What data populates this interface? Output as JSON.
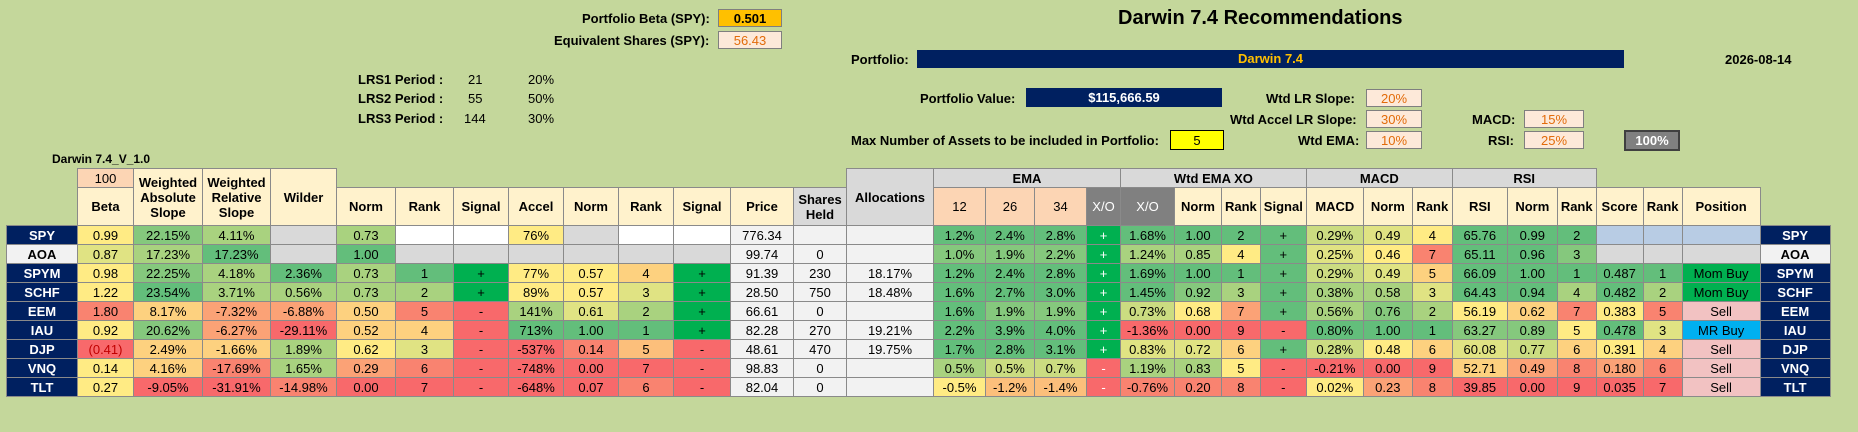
{
  "header": {
    "portfolio_beta_label": "Portfolio Beta (SPY):",
    "portfolio_beta_value": "0.501",
    "equiv_shares_label": "Equivalent Shares (SPY):",
    "equiv_shares_value": "56.43",
    "title": "Darwin 7.4 Recommendations",
    "portfolio_label": "Portfolio:",
    "portfolio_name": "Darwin 7.4",
    "date": "2026-08-14",
    "lrs": [
      {
        "label": "LRS1 Period :",
        "period": "21",
        "pct": "20%"
      },
      {
        "label": "LRS2 Period :",
        "period": "55",
        "pct": "50%"
      },
      {
        "label": "LRS3 Period :",
        "period": "144",
        "pct": "30%"
      }
    ],
    "portfolio_value_label": "Portfolio Value:",
    "portfolio_value": "$115,666.59",
    "max_assets_label": "Max Number of Assets to be included in Portfolio:",
    "max_assets_value": "5",
    "version": "Darwin 7.4_V_1.0",
    "wtd_lr_slope_label": "Wtd LR Slope:",
    "wtd_lr_slope": "20%",
    "wtd_accel_label": "Wtd Accel LR Slope:",
    "wtd_accel": "30%",
    "wtd_ema_label": "Wtd EMA:",
    "wtd_ema": "10%",
    "macd_label": "MACD:",
    "macd": "15%",
    "rsi_label": "RSI:",
    "rsi": "25%",
    "total": "100%"
  },
  "table": {
    "beta_top": "100",
    "h": {
      "beta": "Beta",
      "was": "Weighted Absolute Slope",
      "wrs": "Weighted Relative Slope",
      "wilder": "Wilder",
      "norm": "Norm",
      "rank": "Rank",
      "signal": "Signal",
      "accel": "Accel",
      "price": "Price",
      "shares": "Shares Held",
      "alloc": "Allocations",
      "ema": "EMA",
      "e12": "12",
      "e26": "26",
      "e34": "34",
      "xo": "X/O",
      "wtdxo": "Wtd EMA XO",
      "macd": "MACD",
      "rsi": "RSI",
      "score": "Score",
      "position": "Position"
    },
    "rows": [
      {
        "t": "SPY",
        "beta": "0.99",
        "was": "22.15%",
        "wrs": "4.11%",
        "wil": "",
        "n1": "0.73",
        "rk1": "",
        "sg1": "",
        "acc": "76%",
        "n2": "",
        "rk2": "",
        "sg2": "",
        "price": "776.34",
        "sh": "",
        "al": "",
        "e12": "1.2%",
        "e26": "2.4%",
        "e34": "2.8%",
        "xo": "+",
        "wx": "1.68%",
        "n3": "1.00",
        "rk3": "2",
        "sg3": "+",
        "macd": "0.29%",
        "n4": "0.49",
        "rk4": "4",
        "rsi": "65.76",
        "n5": "0.99",
        "rk5": "2",
        "score": "",
        "rk6": "",
        "pos": ""
      },
      {
        "t": "AOA",
        "beta": "0.87",
        "was": "17.23%",
        "wrs": "17.23%",
        "wil": "",
        "n1": "1.00",
        "rk1": "",
        "sg1": "",
        "acc": "",
        "n2": "",
        "rk2": "",
        "sg2": "",
        "price": "99.74",
        "sh": "0",
        "al": "",
        "e12": "1.0%",
        "e26": "1.9%",
        "e34": "2.2%",
        "xo": "+",
        "wx": "1.24%",
        "n3": "0.85",
        "rk3": "4",
        "sg3": "+",
        "macd": "0.25%",
        "n4": "0.46",
        "rk4": "7",
        "rsi": "65.11",
        "n5": "0.96",
        "rk5": "3",
        "score": "",
        "rk6": "",
        "pos": ""
      },
      {
        "t": "SPYM",
        "beta": "0.98",
        "was": "22.25%",
        "wrs": "4.18%",
        "wil": "2.36%",
        "n1": "0.73",
        "rk1": "1",
        "sg1": "+",
        "acc": "77%",
        "n2": "0.57",
        "rk2": "4",
        "sg2": "+",
        "price": "91.39",
        "sh": "230",
        "al": "18.17%",
        "e12": "1.2%",
        "e26": "2.4%",
        "e34": "2.8%",
        "xo": "+",
        "wx": "1.69%",
        "n3": "1.00",
        "rk3": "1",
        "sg3": "+",
        "macd": "0.29%",
        "n4": "0.49",
        "rk4": "5",
        "rsi": "66.09",
        "n5": "1.00",
        "rk5": "1",
        "score": "0.487",
        "rk6": "1",
        "pos": "Mom Buy"
      },
      {
        "t": "SCHF",
        "beta": "1.22",
        "was": "23.54%",
        "wrs": "3.71%",
        "wil": "0.56%",
        "n1": "0.73",
        "rk1": "2",
        "sg1": "+",
        "acc": "89%",
        "n2": "0.57",
        "rk2": "3",
        "sg2": "+",
        "price": "28.50",
        "sh": "750",
        "al": "18.48%",
        "e12": "1.6%",
        "e26": "2.7%",
        "e34": "3.0%",
        "xo": "+",
        "wx": "1.45%",
        "n3": "0.92",
        "rk3": "3",
        "sg3": "+",
        "macd": "0.38%",
        "n4": "0.58",
        "rk4": "3",
        "rsi": "64.43",
        "n5": "0.94",
        "rk5": "4",
        "score": "0.482",
        "rk6": "2",
        "pos": "Mom Buy"
      },
      {
        "t": "EEM",
        "beta": "1.80",
        "was": "8.17%",
        "wrs": "-7.32%",
        "wil": "-6.88%",
        "n1": "0.50",
        "rk1": "5",
        "sg1": "-",
        "acc": "141%",
        "n2": "0.61",
        "rk2": "2",
        "sg2": "+",
        "price": "66.61",
        "sh": "0",
        "al": "",
        "e12": "1.6%",
        "e26": "1.9%",
        "e34": "1.9%",
        "xo": "+",
        "wx": "0.73%",
        "n3": "0.68",
        "rk3": "7",
        "sg3": "+",
        "macd": "0.56%",
        "n4": "0.76",
        "rk4": "2",
        "rsi": "56.19",
        "n5": "0.62",
        "rk5": "7",
        "score": "0.383",
        "rk6": "5",
        "pos": "Sell"
      },
      {
        "t": "IAU",
        "beta": "0.92",
        "was": "20.62%",
        "wrs": "-6.27%",
        "wil": "-29.11%",
        "n1": "0.52",
        "rk1": "4",
        "sg1": "-",
        "acc": "713%",
        "n2": "1.00",
        "rk2": "1",
        "sg2": "+",
        "price": "82.28",
        "sh": "270",
        "al": "19.21%",
        "e12": "2.2%",
        "e26": "3.9%",
        "e34": "4.0%",
        "xo": "+",
        "wx": "-1.36%",
        "n3": "0.00",
        "rk3": "9",
        "sg3": "-",
        "macd": "0.80%",
        "n4": "1.00",
        "rk4": "1",
        "rsi": "63.27",
        "n5": "0.89",
        "rk5": "5",
        "score": "0.478",
        "rk6": "3",
        "pos": "MR Buy"
      },
      {
        "t": "DJP",
        "beta": "(0.41)",
        "was": "2.49%",
        "wrs": "-1.66%",
        "wil": "1.89%",
        "n1": "0.62",
        "rk1": "3",
        "sg1": "-",
        "acc": "-537%",
        "n2": "0.14",
        "rk2": "5",
        "sg2": "-",
        "price": "48.61",
        "sh": "470",
        "al": "19.75%",
        "e12": "1.7%",
        "e26": "2.8%",
        "e34": "3.1%",
        "xo": "+",
        "wx": "0.83%",
        "n3": "0.72",
        "rk3": "6",
        "sg3": "+",
        "macd": "0.28%",
        "n4": "0.48",
        "rk4": "6",
        "rsi": "60.08",
        "n5": "0.77",
        "rk5": "6",
        "score": "0.391",
        "rk6": "4",
        "pos": "Sell"
      },
      {
        "t": "VNQ",
        "beta": "0.14",
        "was": "4.16%",
        "wrs": "-17.69%",
        "wil": "1.65%",
        "n1": "0.29",
        "rk1": "6",
        "sg1": "-",
        "acc": "-748%",
        "n2": "0.00",
        "rk2": "7",
        "sg2": "-",
        "price": "98.83",
        "sh": "0",
        "al": "",
        "e12": "0.5%",
        "e26": "0.5%",
        "e34": "0.7%",
        "xo": "-",
        "wx": "1.19%",
        "n3": "0.83",
        "rk3": "5",
        "sg3": "-",
        "macd": "-0.21%",
        "n4": "0.00",
        "rk4": "9",
        "rsi": "52.71",
        "n5": "0.49",
        "rk5": "8",
        "score": "0.180",
        "rk6": "6",
        "pos": "Sell"
      },
      {
        "t": "TLT",
        "beta": "0.27",
        "was": "-9.05%",
        "wrs": "-31.91%",
        "wil": "-14.98%",
        "n1": "0.00",
        "rk1": "7",
        "sg1": "-",
        "acc": "-648%",
        "n2": "0.07",
        "rk2": "6",
        "sg2": "-",
        "price": "82.04",
        "sh": "0",
        "al": "",
        "e12": "-0.5%",
        "e26": "-1.2%",
        "e34": "-1.4%",
        "xo": "-",
        "wx": "-0.76%",
        "n3": "0.20",
        "rk3": "8",
        "sg3": "-",
        "macd": "0.02%",
        "n4": "0.23",
        "rk4": "8",
        "rsi": "39.85",
        "n5": "0.00",
        "rk5": "9",
        "score": "0.035",
        "rk6": "7",
        "pos": "Sell"
      }
    ]
  }
}
